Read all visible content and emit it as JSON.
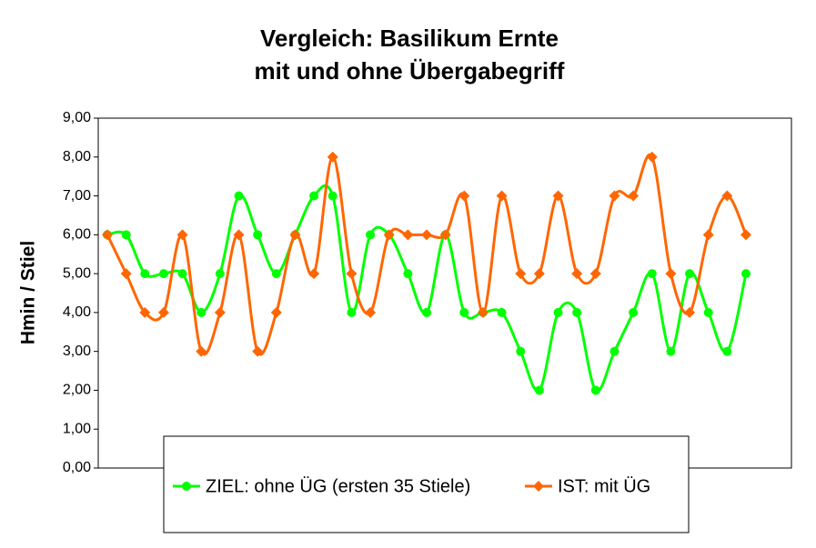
{
  "chart_data": {
    "type": "line",
    "title": [
      "Vergleich: Basilikum Ernte",
      "mit und ohne Übergabegriff"
    ],
    "y_label": "Hmin / Stiel",
    "categories": [
      null,
      null,
      null,
      null,
      null,
      null,
      null,
      null,
      null,
      null,
      null,
      null,
      null,
      null,
      null,
      null,
      null,
      null,
      null,
      null,
      null,
      null,
      null,
      null,
      null,
      null,
      null,
      null,
      null,
      null,
      null,
      null,
      null,
      null,
      null
    ],
    "series": [
      {
        "name": "ZIEL: ohne ÜG (ersten 35 Stiele)",
        "color": "#00ff00",
        "marker": "circle",
        "values": [
          6,
          6,
          5,
          5,
          5,
          4,
          5,
          7,
          6,
          5,
          6,
          7,
          7,
          4,
          6,
          6,
          5,
          4,
          6,
          4,
          4,
          4,
          3,
          2,
          4,
          4,
          2,
          3,
          4,
          5,
          3,
          5,
          4,
          3,
          5
        ]
      },
      {
        "name": "IST: mit ÜG",
        "color": "#ff6600",
        "marker": "diamond",
        "values": [
          6,
          5,
          4,
          4,
          6,
          3,
          4,
          6,
          3,
          4,
          6,
          5,
          8,
          5,
          4,
          6,
          6,
          6,
          6,
          7,
          4,
          7,
          5,
          5,
          7,
          5,
          5,
          7,
          7,
          8,
          5,
          4,
          6,
          7,
          6
        ]
      }
    ],
    "ylim": [
      0,
      9
    ],
    "yticks": [
      {
        "value": 0,
        "label": "0,00"
      },
      {
        "value": 1,
        "label": "1,00"
      },
      {
        "value": 2,
        "label": "2,00"
      },
      {
        "value": 3,
        "label": "3,00"
      },
      {
        "value": 4,
        "label": "4,00"
      },
      {
        "value": 5,
        "label": "5,00"
      },
      {
        "value": 6,
        "label": "6,00"
      },
      {
        "value": 7,
        "label": "7,00"
      },
      {
        "value": 8,
        "label": "8,00"
      },
      {
        "value": 9,
        "label": "9,00"
      }
    ],
    "smooth": true,
    "grid": false
  }
}
